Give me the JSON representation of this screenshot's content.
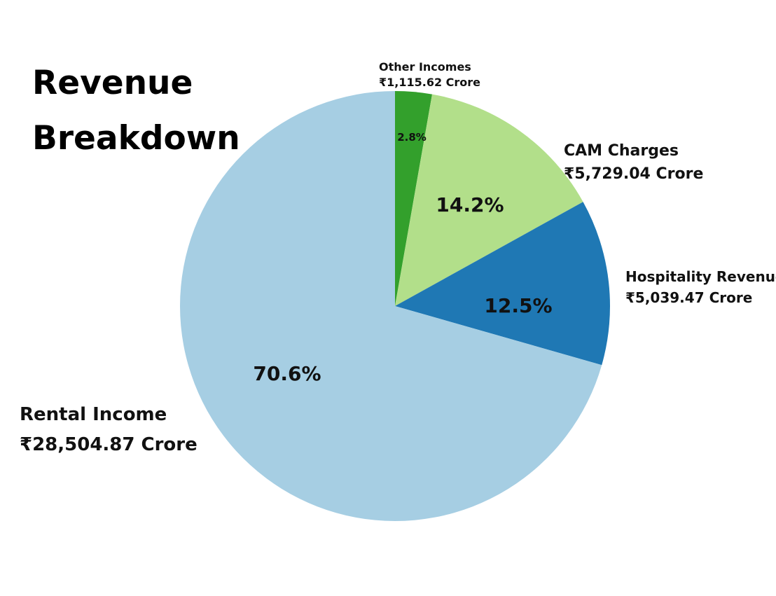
{
  "chart_data": {
    "type": "pie",
    "title": [
      "Revenue",
      "Breakdown"
    ],
    "unit": "Crore",
    "currency": "₹",
    "start": "12 o'clock",
    "direction": "clockwise",
    "slices": [
      {
        "name": "Other Incomes",
        "value_label": "₹1,115.62 Crore",
        "value": 1115.62,
        "percent": 2.8,
        "percent_label": "2.8%",
        "color": "#33a02c"
      },
      {
        "name": "CAM Charges",
        "value_label": "₹5,729.04 Crore",
        "value": 5729.04,
        "percent": 14.2,
        "percent_label": "14.2%",
        "color": "#b2df8a"
      },
      {
        "name": "Hospitality Revenue",
        "value_label": "₹5,039.47 Crore",
        "value": 5039.47,
        "percent": 12.5,
        "percent_label": "12.5%",
        "color": "#1f78b4"
      },
      {
        "name": "Rental Income",
        "value_label": "₹28,504.87 Crore",
        "value": 28504.87,
        "percent": 70.6,
        "percent_label": "70.6%",
        "color": "#a6cee3"
      }
    ]
  }
}
